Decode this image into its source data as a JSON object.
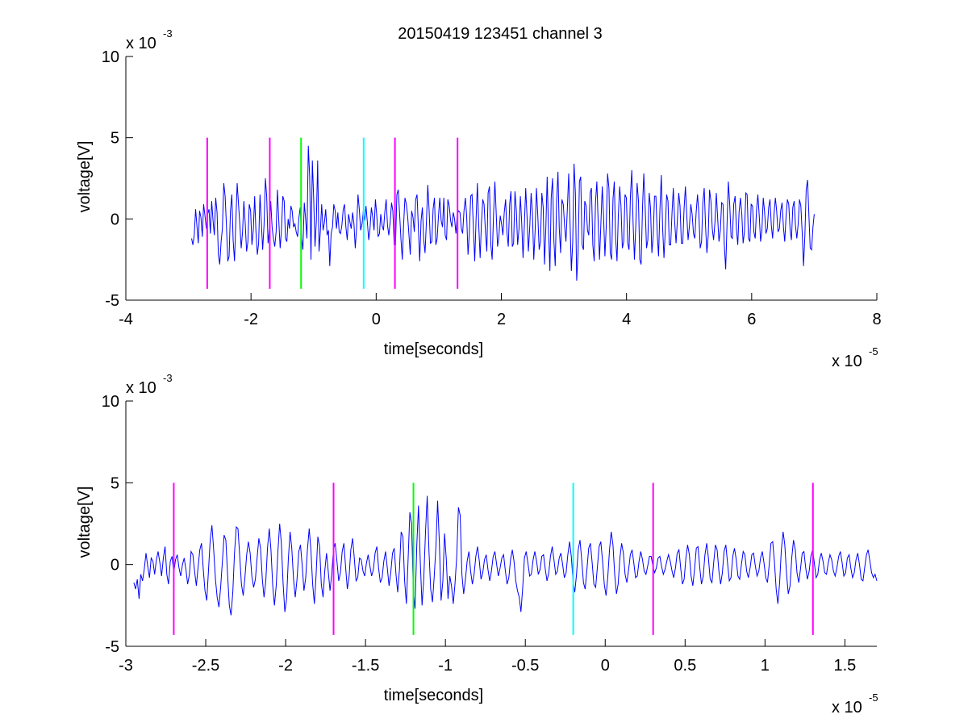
{
  "title": "20150419 123451 channel 3",
  "chart_data": [
    {
      "type": "line",
      "title": "20150419 123451 channel 3",
      "xlabel": "time[seconds]",
      "ylabel": "voltage[V]",
      "x_exponent_label": "x 10",
      "x_exponent": "-5",
      "y_exponent_label": "x 10",
      "y_exponent": "-3",
      "xlim": [
        -4,
        8
      ],
      "ylim": [
        -5,
        10
      ],
      "x_ticks": [
        -4,
        -2,
        0,
        2,
        4,
        6,
        8
      ],
      "x_tick_labels": [
        "-4",
        "-2",
        "0",
        "2",
        "4",
        "6",
        "8"
      ],
      "y_ticks": [
        -5,
        0,
        5,
        10
      ],
      "y_tick_labels": [
        "-5",
        "0",
        "5",
        "10"
      ],
      "grid": false,
      "series": [
        {
          "color": "#0000ff",
          "x_start": -2.95,
          "x_end": 7.0,
          "samples": [
            -1.2,
            -1.6,
            -1.0,
            0.6,
            -0.4,
            -1.5,
            0.5,
            0.1,
            -1.1,
            0.9,
            0.2,
            -0.6,
            0.3,
            0.6,
            -0.9,
            1.1,
            -0.1,
            -1.0,
            1.3,
            0.4,
            -2.2,
            -2.8,
            -1.4,
            -0.6,
            2.2,
            1.4,
            -0.4,
            -2.6,
            -2.3,
            0.5,
            1.5,
            -1.3,
            -2.6,
            -0.1,
            2.2,
            0.9,
            -0.4,
            -1.8,
            -0.8,
            1.1,
            -0.3,
            -2.0,
            -1.4,
            0.9,
            0.5,
            -1.6,
            -0.7,
            1.4,
            -0.8,
            -2.2,
            -1.5,
            1.5,
            -0.2,
            -1.9,
            -0.4,
            2.5,
            1.4,
            -1.5,
            -0.6,
            1.1,
            -0.5,
            -1.2,
            -1.7,
            -0.8,
            1.8,
            -0.1,
            -1.8,
            -0.7,
            1.4,
            1.1,
            -1.2,
            -1.4,
            0.0,
            -0.6,
            0.8,
            0.5,
            -0.5,
            -0.3,
            -0.8,
            -1.1,
            0.1,
            0.7,
            -1.2,
            -1.9,
            1.0,
            0.0,
            -1.2,
            4.5,
            2.6,
            -2.5,
            3.6,
            1.2,
            -1.7,
            -0.1,
            3.6,
            -2.0,
            -0.7,
            0.9,
            -0.7,
            -0.2,
            0.6,
            -1.0,
            -0.7,
            -2.9,
            -0.9,
            -0.5,
            0.9,
            0.5,
            -0.6,
            0.4,
            -0.8,
            -0.9,
            -0.4,
            0.6,
            0.9,
            -0.5,
            -1.3,
            0.3,
            -0.2,
            -0.6,
            0.4,
            -0.3,
            -1.8,
            -0.5,
            1.5,
            0.6,
            -0.7,
            -0.3,
            0.5,
            -0.1,
            0.8,
            -0.2,
            -1.3,
            -0.6,
            0.7,
            0.1,
            -0.7,
            1.2,
            0.2,
            -1.1,
            -0.9,
            0.3,
            -0.4,
            -0.7,
            0.4,
            1.2,
            -0.4,
            -1.0,
            -0.2,
            1.0,
            0.5,
            -1.6,
            -1.6,
            1.5,
            1.8,
            0.4,
            -1.2,
            -2.5,
            -0.4,
            1.3,
            0.9,
            0.2,
            -1.0,
            -2.2,
            0.5,
            0.1,
            -0.8,
            1.2,
            1.5,
            -0.5,
            -2.6,
            -0.1,
            0.7,
            -1.3,
            -2.1,
            -0.2,
            2.1,
            0.6,
            -1.5,
            -1.4,
            0.6,
            1.3,
            -1.6,
            -1.2,
            0.2,
            1.3,
            -0.1,
            -0.5,
            1.3,
            -1.0,
            -1.3,
            1.2,
            0.8,
            -0.1,
            -0.5,
            0.4,
            0.0,
            -0.9,
            0.3,
            0.5,
            0.4,
            -0.6,
            -0.9,
            0.5,
            1.3,
            0.2,
            -2.2,
            -0.9,
            1.4,
            1.5,
            -0.5,
            -2.6,
            0.0,
            2.2,
            -0.4,
            -2.4,
            -0.3,
            1.2,
            0.9,
            -0.8,
            -2.0,
            1.6,
            2.0,
            -1.6,
            -2.5,
            0.2,
            2.3,
            0.4,
            -1.7,
            -1.1,
            0.2,
            -0.3,
            -1.0,
            0.4,
            1.2,
            -0.8,
            -1.7,
            0.9,
            1.7,
            -1.7,
            -1.5,
            1.7,
            0.5,
            -1.6,
            -0.6,
            1.4,
            -0.2,
            -2.4,
            -0.3,
            1.9,
            0.1,
            -2.0,
            -0.5,
            1.6,
            0.4,
            -2.5,
            -0.7,
            1.9,
            0.2,
            -1.9,
            -1.4,
            1.6,
            0.7,
            -2.8,
            -0.5,
            2.6,
            -0.7,
            -3.2,
            1.3,
            2.5,
            -1.4,
            -2.9,
            1.1,
            2.9,
            -0.6,
            -2.1,
            1.2,
            0.9,
            -0.5,
            -1.4,
            0.6,
            2.8,
            -0.1,
            -3.2,
            -1.4,
            3.4,
            1.6,
            -3.8,
            -2.1,
            2.3,
            2.6,
            -1.6,
            -1.9,
            1.1,
            0.8,
            -0.7,
            -1.0,
            1.6,
            1.9,
            -1.6,
            -2.6,
            1.0,
            2.3,
            -0.3,
            -2.5,
            -0.3,
            2.0,
            0.2,
            -2.3,
            -0.5,
            2.8,
            1.9,
            -2.1,
            -2.5,
            1.2,
            2.3,
            -1.2,
            -2.6,
            0.2,
            2.0,
            0.8,
            -1.8,
            -1.4,
            1.5,
            1.3,
            -1.5,
            -1.9,
            1.4,
            3.0,
            -0.2,
            -2.5,
            -0.5,
            2.2,
            1.1,
            -2.5,
            -2.8,
            0.7,
            2.8,
            0.7,
            -1.8,
            -1.3,
            1.6,
            0.7,
            -2.1,
            -1.0,
            1.4,
            1.4,
            -1.0,
            -2.3,
            0.6,
            2.7,
            -0.5,
            -2.4,
            -0.7,
            1.5,
            1.1,
            -1.6,
            -1.6,
            0.4,
            1.9,
            -0.2,
            -1.5,
            -0.1,
            1.6,
            0.8,
            -1.5,
            -1.5,
            0.6,
            2.0,
            0.2,
            -1.3,
            -0.4,
            0.9,
            0.3,
            -0.9,
            -1.2,
            0.4,
            1.5,
            0.4,
            -1.8,
            -1.4,
            1.0,
            1.9,
            -0.5,
            -2.1,
            -1.0,
            1.8,
            1.1,
            -0.6,
            -1.3,
            -0.2,
            1.6,
            0.1,
            -1.4,
            -0.7,
            1.0,
            0.9,
            -1.6,
            -3.1,
            -0.3,
            2.3,
            0.9,
            -1.1,
            -1.2,
            0.9,
            1.4,
            -0.6,
            -1.6,
            0.4,
            1.3,
            0.3,
            -1.5,
            -0.8,
            1.6,
            1.5,
            -1.2,
            -1.4,
            0.9,
            0.8,
            -0.8,
            -1.2,
            0.6,
            1.5,
            0.2,
            -1.4,
            -0.7,
            1.3,
            0.4,
            -0.9,
            -0.6,
            0.7,
            1.2,
            -0.4,
            -1.2,
            0.3,
            1.3,
            0.5,
            -0.8,
            -0.6,
            0.5,
            1.0,
            -0.5,
            -1.4,
            0.2,
            1.2,
            0.9,
            -0.7,
            -1.3,
            0.7,
            1.1,
            -0.4,
            -1.2,
            -0.3,
            1.2,
            0.8,
            -0.8,
            -2.9,
            -1.0,
            1.8,
            2.4,
            0.2,
            -1.8,
            -1.9,
            -0.5,
            0.3
          ]
        }
      ],
      "markers": [
        {
          "x": -2.7,
          "color": "#ff00ff"
        },
        {
          "x": -1.7,
          "color": "#ff00ff"
        },
        {
          "x": -1.2,
          "color": "#00ff00"
        },
        {
          "x": -0.2,
          "color": "#00ffff"
        },
        {
          "x": 0.3,
          "color": "#ff00ff"
        },
        {
          "x": 1.3,
          "color": "#ff00ff"
        }
      ],
      "marker_range": [
        -4.3,
        5.0
      ]
    },
    {
      "type": "line",
      "xlabel": "time[seconds]",
      "ylabel": "voltage[V]",
      "x_exponent_label": "x 10",
      "x_exponent": "-5",
      "y_exponent_label": "x 10",
      "y_exponent": "-3",
      "xlim": [
        -3.0,
        1.7
      ],
      "ylim": [
        -5,
        10
      ],
      "x_ticks": [
        -3,
        -2.5,
        -2,
        -1.5,
        -1,
        -0.5,
        0,
        0.5,
        1,
        1.5
      ],
      "x_tick_labels": [
        "-3",
        "-2.5",
        "-2",
        "-1.5",
        "-1",
        "-0.5",
        "0",
        "0.5",
        "1",
        "1.5"
      ],
      "y_ticks": [
        -5,
        0,
        5,
        10
      ],
      "y_tick_labels": [
        "-5",
        "0",
        "5",
        "10"
      ],
      "grid": false,
      "series": [
        {
          "color": "#0000ff",
          "x_start": -2.95,
          "x_end": 1.7,
          "samples": [
            -1.1,
            -1.5,
            -0.9,
            -2.1,
            -0.6,
            -1.0,
            -0.3,
            0.7,
            -0.1,
            -0.8,
            0.4,
            0.2,
            -0.6,
            0.3,
            0.8,
            0.1,
            -0.7,
            0.4,
            1.1,
            -0.6,
            -1.2,
            0.2,
            0.5,
            -0.5,
            0.3,
            0.6,
            -0.2,
            -0.7,
            0.0,
            0.4,
            -0.3,
            -1.2,
            -0.6,
            0.8,
            0.6,
            -0.4,
            -1.3,
            -0.2,
            0.9,
            1.3,
            -0.3,
            -1.6,
            -2.2,
            -0.4,
            1.5,
            2.4,
            0.9,
            -0.9,
            -2.0,
            -2.6,
            -1.4,
            0.2,
            1.8,
            1.5,
            -0.6,
            -2.5,
            -3.1,
            -1.7,
            0.7,
            2.3,
            2.2,
            0.5,
            -1.2,
            -1.9,
            -0.8,
            0.6,
            1.4,
            0.7,
            -0.7,
            -1.4,
            -0.9,
            0.4,
            1.6,
            1.0,
            -0.9,
            -2.0,
            -1.0,
            1.0,
            2.2,
            0.9,
            -1.3,
            -2.5,
            -1.3,
            0.8,
            2.5,
            1.3,
            -1.2,
            -2.9,
            -2.1,
            0.3,
            2.0,
            1.0,
            -0.9,
            -2.0,
            -0.9,
            0.8,
            1.2,
            -0.1,
            -1.6,
            -0.8,
            0.9,
            2.2,
            0.9,
            -1.2,
            -2.4,
            -0.6,
            1.7,
            1.1,
            -1.2,
            -2.0,
            -0.4,
            0.7,
            -0.4,
            -1.6,
            -0.6,
            0.9,
            1.3,
            0.2,
            -1.0,
            -0.5,
            0.8,
            1.3,
            -0.2,
            -1.5,
            -0.7,
            0.9,
            1.6,
            0.4,
            -1.0,
            -0.8,
            0.4,
            0.3,
            -0.4,
            -0.7,
            0.1,
            0.6,
            -0.1,
            -0.7,
            -0.3,
            0.7,
            1.1,
            -0.2,
            -1.1,
            -0.8,
            0.2,
            0.8,
            -0.2,
            -1.3,
            -0.5,
            0.7,
            1.0,
            -0.6,
            -1.7,
            -0.3,
            2.0,
            1.7,
            -1.0,
            -2.4,
            0.3,
            3.2,
            2.5,
            -1.6,
            -2.7,
            1.2,
            3.6,
            0.2,
            -2.5,
            -0.9,
            2.0,
            4.2,
            0.8,
            -1.5,
            -2.3,
            -0.8,
            1.1,
            3.9,
            1.3,
            -2.2,
            -1.0,
            1.9,
            0.3,
            -2.1,
            -0.7,
            -1.3,
            -2.4,
            -1.2,
            0.5,
            3.5,
            3.0,
            -0.6,
            -1.8,
            -0.9,
            0.2,
            0.8,
            -0.4,
            -1.2,
            -0.6,
            0.5,
            1.1,
            0.2,
            -0.9,
            -0.5,
            0.3,
            0.6,
            -0.3,
            -1.0,
            -0.4,
            0.5,
            0.8,
            0.0,
            -0.7,
            -0.2,
            0.4,
            0.6,
            -0.4,
            -1.2,
            -0.8,
            0.3,
            0.9,
            0.2,
            -1.0,
            -1.6,
            -2.0,
            -2.9,
            -1.4,
            0.4,
            0.8,
            0.1,
            -0.7,
            -0.6,
            0.3,
            0.8,
            0.2,
            -0.6,
            -0.3,
            0.5,
            0.6,
            -0.3,
            -1.0,
            -0.5,
            0.5,
            1.1,
            0.3,
            -0.6,
            -0.4,
            0.4,
            0.7,
            0.0,
            -0.8,
            -0.5,
            0.6,
            1.4,
            0.5,
            -1.0,
            -1.7,
            -0.6,
            0.9,
            1.5,
            0.3,
            -1.1,
            -1.5,
            -0.3,
            1.0,
            1.3,
            0.1,
            -1.2,
            -1.4,
            -0.2,
            1.1,
            1.4,
            0.2,
            -1.2,
            -1.9,
            -0.8,
            0.9,
            2.0,
            1.2,
            -0.6,
            -1.8,
            -1.2,
            0.4,
            1.3,
            0.7,
            -0.6,
            -1.1,
            -0.3,
            0.6,
            0.9,
            0.1,
            -0.8,
            -0.7,
            0.2,
            0.8,
            0.3,
            -0.4,
            -0.6,
            -0.1,
            0.5,
            0.5,
            -0.1,
            -0.5,
            -0.2,
            0.4,
            0.5,
            -0.1,
            -0.6,
            -0.3,
            0.2,
            0.6,
            0.2,
            -0.4,
            -0.8,
            -0.2,
            0.7,
            0.9,
            -0.2,
            -1.2,
            -0.9,
            0.4,
            1.2,
            0.6,
            -0.7,
            -1.3,
            -0.3,
            1.0,
            1.1,
            -0.2,
            -1.2,
            -0.7,
            0.6,
            1.3,
            0.4,
            -0.9,
            -1.1,
            0.1,
            1.2,
            0.9,
            -0.4,
            -1.2,
            -0.5,
            0.8,
            1.2,
            0.1,
            -1.0,
            -0.8,
            0.5,
            1.0,
            0.3,
            -0.7,
            -0.9,
            0.0,
            0.8,
            0.6,
            -0.4,
            -0.8,
            -0.2,
            0.6,
            0.7,
            -0.1,
            -0.7,
            -0.4,
            0.4,
            0.8,
            0.1,
            -0.8,
            -1.1,
            0.0,
            1.3,
            1.4,
            0.2,
            -1.5,
            -2.4,
            -1.1,
            0.9,
            2.0,
            1.2,
            -0.6,
            -1.8,
            -1.3,
            0.4,
            1.5,
            0.9,
            -0.5,
            -1.1,
            -0.3,
            0.7,
            0.8,
            -0.2,
            -0.9,
            -0.4,
            0.5,
            0.9,
            0.1,
            -0.8,
            -0.6,
            0.3,
            0.7,
            0.2,
            -0.5,
            -0.6,
            0.1,
            0.6,
            0.3,
            -0.4,
            -0.7,
            -0.2,
            0.5,
            0.8,
            0.1,
            -0.7,
            -0.5,
            0.4,
            0.6,
            -0.2,
            -0.8,
            -0.5,
            0.3,
            0.7,
            0.0,
            -0.9,
            -1.0,
            -0.2,
            0.6,
            0.9,
            0.2,
            -0.5,
            -0.8,
            -0.6,
            -1.0
          ]
        }
      ],
      "markers": [
        {
          "x": -2.7,
          "color": "#ff00ff"
        },
        {
          "x": -1.7,
          "color": "#ff00ff"
        },
        {
          "x": -1.2,
          "color": "#00ff00"
        },
        {
          "x": -0.2,
          "color": "#00ffff"
        },
        {
          "x": 0.3,
          "color": "#ff00ff"
        },
        {
          "x": 1.3,
          "color": "#ff00ff"
        }
      ],
      "marker_range": [
        -4.3,
        5.0
      ]
    }
  ]
}
